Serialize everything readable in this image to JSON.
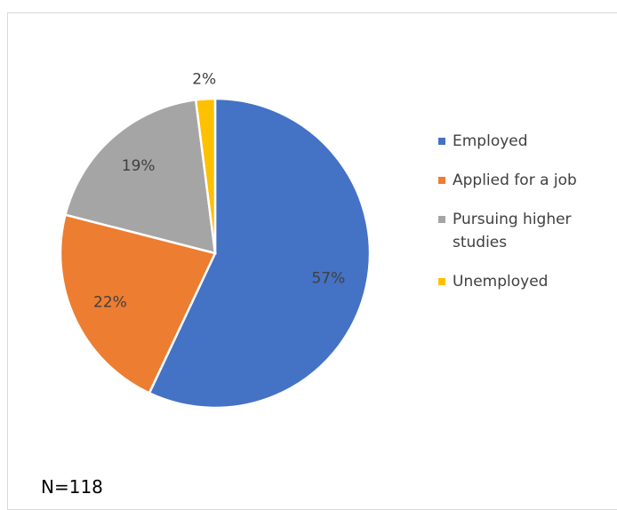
{
  "chart_data": {
    "type": "pie",
    "categories": [
      "Employed",
      "Applied for a job",
      "Pursuing higher studies",
      "Unemployed"
    ],
    "values": [
      57,
      22,
      19,
      2
    ],
    "value_labels": [
      "57%",
      "22%",
      "19%",
      "2%"
    ],
    "colors": [
      "#4472c4",
      "#ed7d31",
      "#a5a5a5",
      "#ffc000"
    ],
    "legend": "right",
    "annotation": "N=118"
  }
}
